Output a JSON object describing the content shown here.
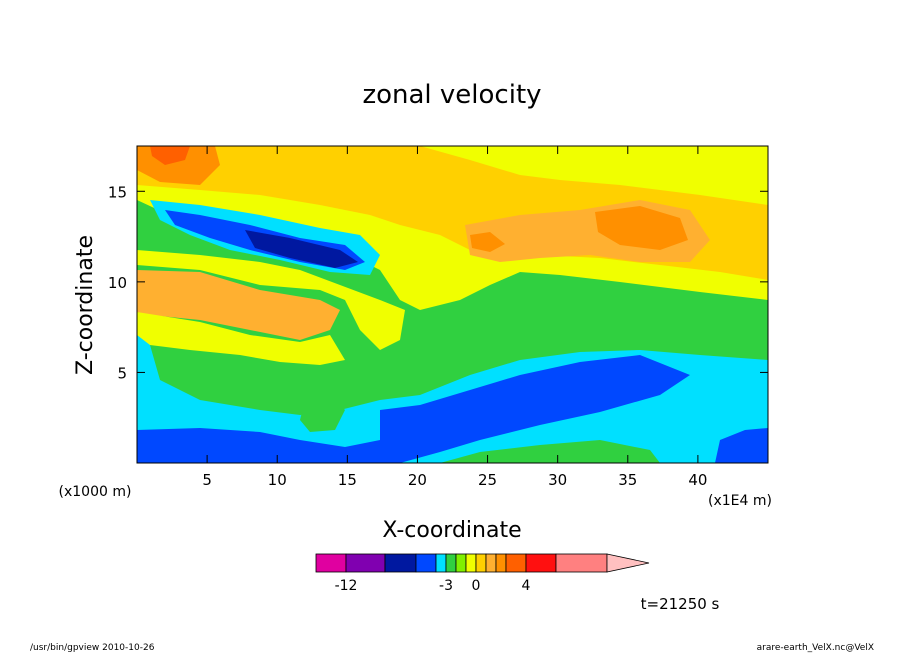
{
  "chart_data": {
    "type": "heatmap",
    "title": "zonal velocity",
    "xlabel": "X-coordinate",
    "ylabel": "Z-coordinate",
    "x_unit_left": "(x1000 m)",
    "x_unit_right": "(x1E4 m)",
    "xlim": [
      0,
      45
    ],
    "ylim": [
      0,
      17.5
    ],
    "x_ticks": [
      "5",
      "10",
      "15",
      "20",
      "25",
      "30",
      "35",
      "40"
    ],
    "x_tick_values": [
      5,
      10,
      15,
      20,
      25,
      30,
      35,
      40
    ],
    "y_ticks": [
      "5",
      "10",
      "15"
    ],
    "y_tick_values": [
      5,
      10,
      15
    ],
    "colorbar": {
      "labels": [
        "-12",
        "-3",
        "0",
        "4"
      ],
      "label_values": [
        -12,
        -3,
        0,
        4
      ],
      "levels": [
        -15,
        -12,
        -9,
        -6,
        -4,
        -3,
        -2,
        -1,
        0,
        1,
        2,
        3,
        4,
        6,
        9
      ],
      "colors": [
        "#e000a0",
        "#8000b0",
        "#0018a0",
        "#0048ff",
        "#00e0ff",
        "#30d040",
        "#80f000",
        "#f0ff00",
        "#ffd000",
        "#ffb030",
        "#ff9000",
        "#ff6000",
        "#ff1010",
        "#ff8080",
        "#ffc0c0"
      ]
    },
    "fields": {
      "ranges": [
        -15,
        9
      ]
    }
  },
  "timestamp": "t=21250 s",
  "footer_left": "/usr/bin/gpview  2010-10-26",
  "footer_right": "arare-earth_VelX.nc@VelX"
}
